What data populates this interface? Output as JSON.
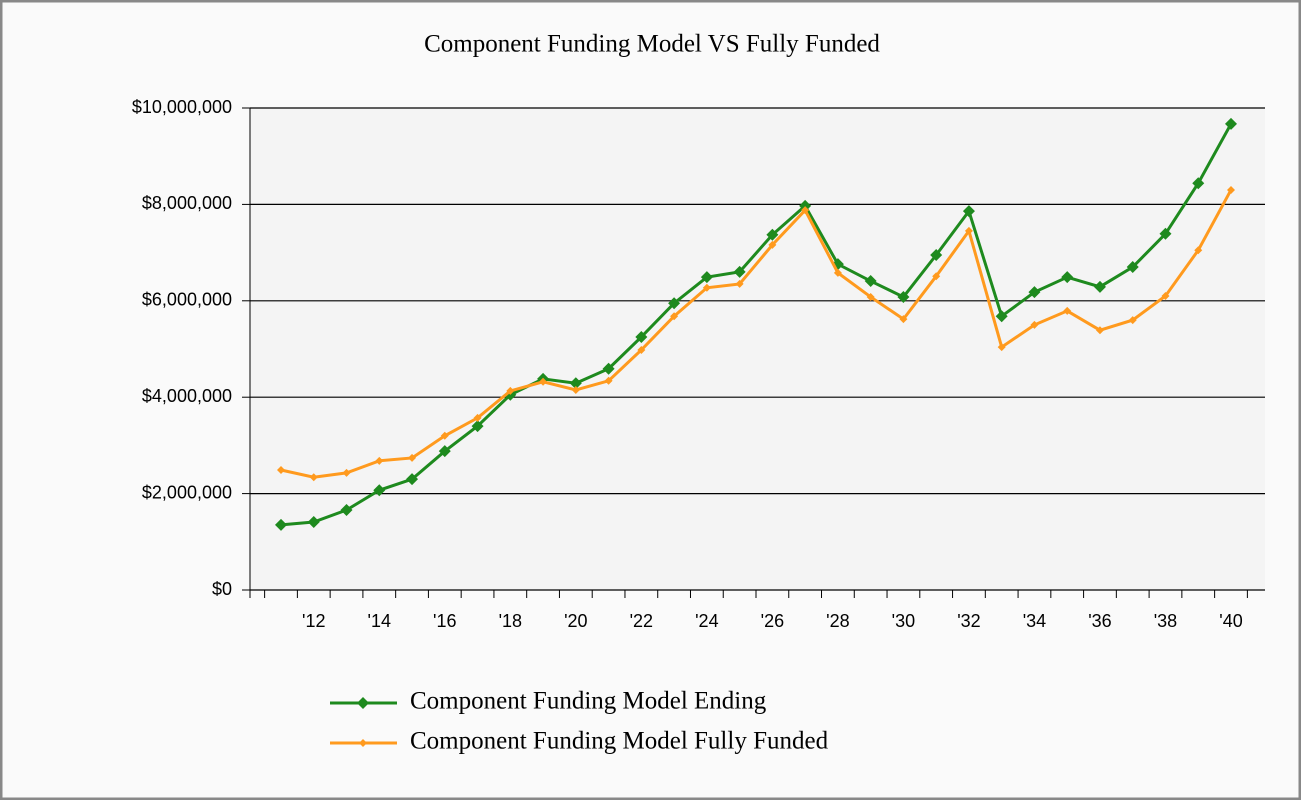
{
  "chart_data": {
    "type": "line",
    "title": "Component Funding Model VS Fully Funded",
    "categories": [
      null,
      "'12",
      null,
      "'14",
      null,
      "'16",
      null,
      "'18",
      null,
      "'20",
      null,
      "'22",
      null,
      "'24",
      null,
      "'26",
      null,
      "'28",
      null,
      "'30",
      null,
      "'32",
      null,
      "'34",
      null,
      "'36",
      null,
      "'38",
      null,
      "'40"
    ],
    "series": [
      {
        "name": "Component Funding Model Ending",
        "color": "#1e8a1e",
        "values": [
          1350000,
          1410000,
          1660000,
          2070000,
          2300000,
          2880000,
          3400000,
          4050000,
          4380000,
          4290000,
          4590000,
          5250000,
          5950000,
          6490000,
          6600000,
          7370000,
          7970000,
          6760000,
          6410000,
          6080000,
          6950000,
          7860000,
          5680000,
          6180000,
          6490000,
          6290000,
          6700000,
          7390000,
          8440000,
          9670000
        ]
      },
      {
        "name": "Component Funding Model Fully Funded",
        "color": "#ff9a1e",
        "values": [
          2490000,
          2340000,
          2430000,
          2680000,
          2740000,
          3200000,
          3570000,
          4130000,
          4320000,
          4150000,
          4340000,
          4980000,
          5680000,
          6270000,
          6350000,
          7160000,
          7880000,
          6580000,
          6080000,
          5620000,
          6510000,
          7450000,
          5040000,
          5500000,
          5790000,
          5390000,
          5600000,
          6100000,
          7050000,
          8300000
        ]
      }
    ],
    "ylim": [
      0,
      10000000
    ],
    "yticks": [
      {
        "value": 0,
        "label": "$0"
      },
      {
        "value": 2000000,
        "label": "$2,000,000"
      },
      {
        "value": 4000000,
        "label": "$4,000,000"
      },
      {
        "value": 6000000,
        "label": "$6,000,000"
      },
      {
        "value": 8000000,
        "label": "$8,000,000"
      },
      {
        "value": 10000000,
        "label": "$10,000,000"
      }
    ],
    "grid": true
  }
}
